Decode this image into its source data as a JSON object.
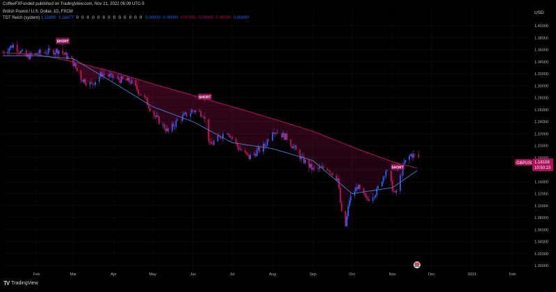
{
  "header": {
    "published": "CoffeeFXFunded published on TradingView.com, Nov 21, 2022 06:09 UTC-5",
    "symbol": "British Pound / U.S. Dollar, 1D, FXCM",
    "indicator_name": "TDT Reich (system)",
    "indicator_values_blue": [
      "1.15899",
      "1.16477"
    ],
    "indicator_zeros": "0 0 0 0 0 0 0 0 0 0 0 0 0",
    "indicator_values_tail": [
      "0.00000",
      "0.00000",
      "0.00000",
      "0.00000",
      "0.00000",
      "0.00000"
    ],
    "colors": {
      "blue": "#2962ff",
      "magenta": "#b0105a",
      "gray": "#b2b5be"
    }
  },
  "price_axis": {
    "currency": "USD"
  },
  "price_tag": {
    "symbol": "GBPUSD",
    "price": "1.18108",
    "countdown": "10:50:23",
    "color": "#b0105a"
  },
  "logo_text": "TradingView",
  "chart_data": {
    "type": "candlestick",
    "ylim": [
      0.99,
      1.41
    ],
    "y_ticks": [
      1.0,
      1.02,
      1.04,
      1.06,
      1.08,
      1.1,
      1.12,
      1.14,
      1.16,
      1.18,
      1.2,
      1.22,
      1.24,
      1.26,
      1.28,
      1.3,
      1.32,
      1.34,
      1.36,
      1.38,
      1.4
    ],
    "y_tick_labels": [
      "1.00000",
      "1.02000",
      "1.04000",
      "1.06000",
      "1.08000",
      "1.10000",
      "1.12000",
      "1.14000",
      "1.16000",
      "1.18000",
      "1.20000",
      "1.22000",
      "1.24000",
      "1.26000",
      "1.28000",
      "1.30000",
      "1.32000",
      "1.34000",
      "1.36000",
      "1.38000",
      "1.40000"
    ],
    "x_range": [
      "2022-01-06",
      "2023-02-22"
    ],
    "x_ticks": [
      {
        "label": "Feb",
        "date": "2022-02-01"
      },
      {
        "label": "Mar",
        "date": "2022-03-01"
      },
      {
        "label": "Apr",
        "date": "2022-04-01"
      },
      {
        "label": "May",
        "date": "2022-05-01"
      },
      {
        "label": "Jun",
        "date": "2022-06-01"
      },
      {
        "label": "Jul",
        "date": "2022-07-01"
      },
      {
        "label": "Aug",
        "date": "2022-08-01"
      },
      {
        "label": "Sep",
        "date": "2022-09-01"
      },
      {
        "label": "Oct",
        "date": "2022-10-01"
      },
      {
        "label": "Nov",
        "date": "2022-11-01"
      },
      {
        "label": "Dec",
        "date": "2022-12-01"
      },
      {
        "label": "2023",
        "date": "2023-01-01"
      },
      {
        "label": "Feb",
        "date": "2023-02-01"
      }
    ],
    "price_path": [
      [
        "2022-01-06",
        1.356
      ],
      [
        "2022-01-14",
        1.368
      ],
      [
        "2022-01-24",
        1.348
      ],
      [
        "2022-02-04",
        1.355
      ],
      [
        "2022-02-18",
        1.359
      ],
      [
        "2022-02-28",
        1.342
      ],
      [
        "2022-03-07",
        1.312
      ],
      [
        "2022-03-15",
        1.302
      ],
      [
        "2022-03-23",
        1.32
      ],
      [
        "2022-04-04",
        1.311
      ],
      [
        "2022-04-14",
        1.307
      ],
      [
        "2022-04-25",
        1.278
      ],
      [
        "2022-05-03",
        1.248
      ],
      [
        "2022-05-13",
        1.223
      ],
      [
        "2022-05-20",
        1.242
      ],
      [
        "2022-06-01",
        1.259
      ],
      [
        "2022-06-09",
        1.253
      ],
      [
        "2022-06-14",
        1.2
      ],
      [
        "2022-06-27",
        1.225
      ],
      [
        "2022-07-06",
        1.196
      ],
      [
        "2022-07-14",
        1.18
      ],
      [
        "2022-07-26",
        1.2
      ],
      [
        "2022-08-01",
        1.227
      ],
      [
        "2022-08-12",
        1.213
      ],
      [
        "2022-08-23",
        1.179
      ],
      [
        "2022-09-01",
        1.16
      ],
      [
        "2022-09-12",
        1.163
      ],
      [
        "2022-09-20",
        1.145
      ],
      [
        "2022-09-23",
        1.086
      ],
      [
        "2022-09-26",
        1.066
      ],
      [
        "2022-09-29",
        1.11
      ],
      [
        "2022-10-05",
        1.132
      ],
      [
        "2022-10-12",
        1.109
      ],
      [
        "2022-10-20",
        1.124
      ],
      [
        "2022-10-27",
        1.16
      ],
      [
        "2022-11-03",
        1.117
      ],
      [
        "2022-11-10",
        1.17
      ],
      [
        "2022-11-15",
        1.185
      ],
      [
        "2022-11-21",
        1.181
      ]
    ],
    "series": [
      {
        "name": "",
        "values": [
          [
            "2022-01-06",
            1.355
          ],
          [
            "2022-02-01",
            1.352
          ],
          [
            "2022-03-01",
            1.34
          ],
          [
            "2022-04-01",
            1.323
          ],
          [
            "2022-05-01",
            1.303
          ],
          [
            "2022-06-01",
            1.284
          ],
          [
            "2022-07-01",
            1.265
          ],
          [
            "2022-08-01",
            1.245
          ],
          [
            "2022-09-01",
            1.224
          ],
          [
            "2022-10-01",
            1.198
          ],
          [
            "2022-11-01",
            1.173
          ],
          [
            "2022-11-21",
            1.162
          ]
        ]
      },
      {
        "name": "",
        "values": [
          [
            "2022-01-06",
            1.35
          ],
          [
            "2022-02-01",
            1.35
          ],
          [
            "2022-03-01",
            1.345
          ],
          [
            "2022-04-01",
            1.305
          ],
          [
            "2022-05-01",
            1.265
          ],
          [
            "2022-06-01",
            1.24
          ],
          [
            "2022-07-01",
            1.205
          ],
          [
            "2022-08-01",
            1.195
          ],
          [
            "2022-09-01",
            1.175
          ],
          [
            "2022-10-01",
            1.12
          ],
          [
            "2022-11-01",
            1.13
          ],
          [
            "2022-11-21",
            1.16
          ]
        ]
      }
    ],
    "annotations": [
      {
        "text": "SHORT",
        "date": "2022-02-21",
        "price": 1.374
      },
      {
        "text": "SHORT",
        "date": "2022-06-10",
        "price": 1.281
      },
      {
        "text": "SHORT",
        "date": "2022-11-05",
        "price": 1.164
      }
    ]
  }
}
